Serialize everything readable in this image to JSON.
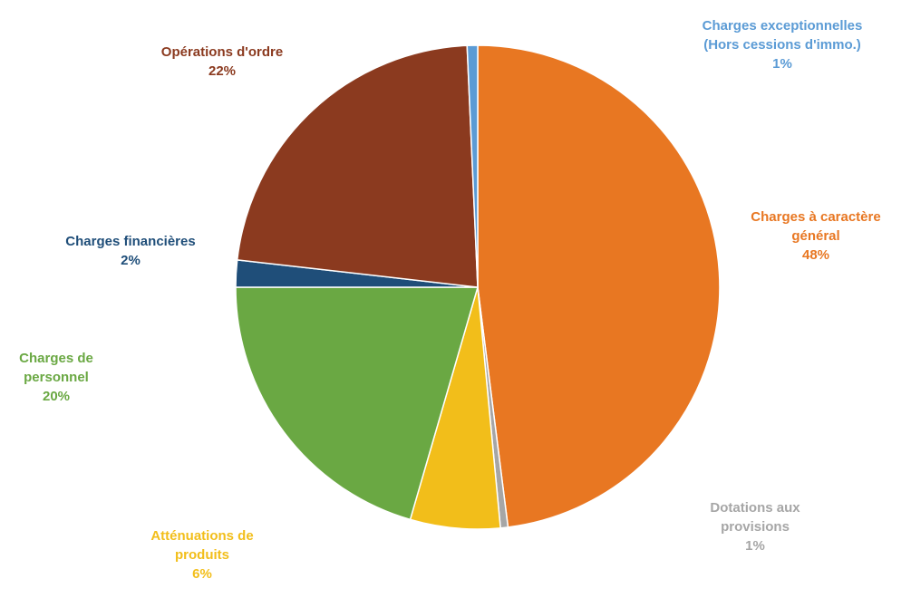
{
  "chart_data": {
    "type": "pie",
    "title": "",
    "slices": [
      {
        "label_lines": [
          "Charges à caractère",
          "général"
        ],
        "percent_text": "48%",
        "value": 48,
        "color": "#E87722"
      },
      {
        "label_lines": [
          "Dotations aux",
          "provisions"
        ],
        "percent_text": "1%",
        "value": 0.5,
        "color": "#A6A6A6"
      },
      {
        "label_lines": [
          "Atténuations de",
          "produits"
        ],
        "percent_text": "6%",
        "value": 6,
        "color": "#F2BE1A"
      },
      {
        "label_lines": [
          "Charges de",
          "personnel"
        ],
        "percent_text": "20%",
        "value": 20.5,
        "color": "#6AA843"
      },
      {
        "label_lines": [
          "Charges financières"
        ],
        "percent_text": "2%",
        "value": 1.8,
        "color": "#1F4E79"
      },
      {
        "label_lines": [
          "Opérations d'ordre"
        ],
        "percent_text": "22%",
        "value": 22.5,
        "color": "#8B3A1F"
      },
      {
        "label_lines": [
          "Charges exceptionnelles",
          "(Hors cessions d'immo.)"
        ],
        "percent_text": "1%",
        "value": 0.7,
        "color": "#5B9BD5"
      }
    ],
    "start_angle_deg": 0,
    "direction": "clockwise",
    "legend": "none",
    "label_colors": {
      "charges_a_caractere_general": "#E87722",
      "dotations_aux_provisions": "#A6A6A6",
      "attenuations_de_produits": "#F2BE1A",
      "charges_de_personnel": "#6AA843",
      "charges_financieres": "#1F4E79",
      "operations_d_ordre": "#8B3A1F",
      "charges_exceptionnelles": "#5B9BD5"
    }
  }
}
